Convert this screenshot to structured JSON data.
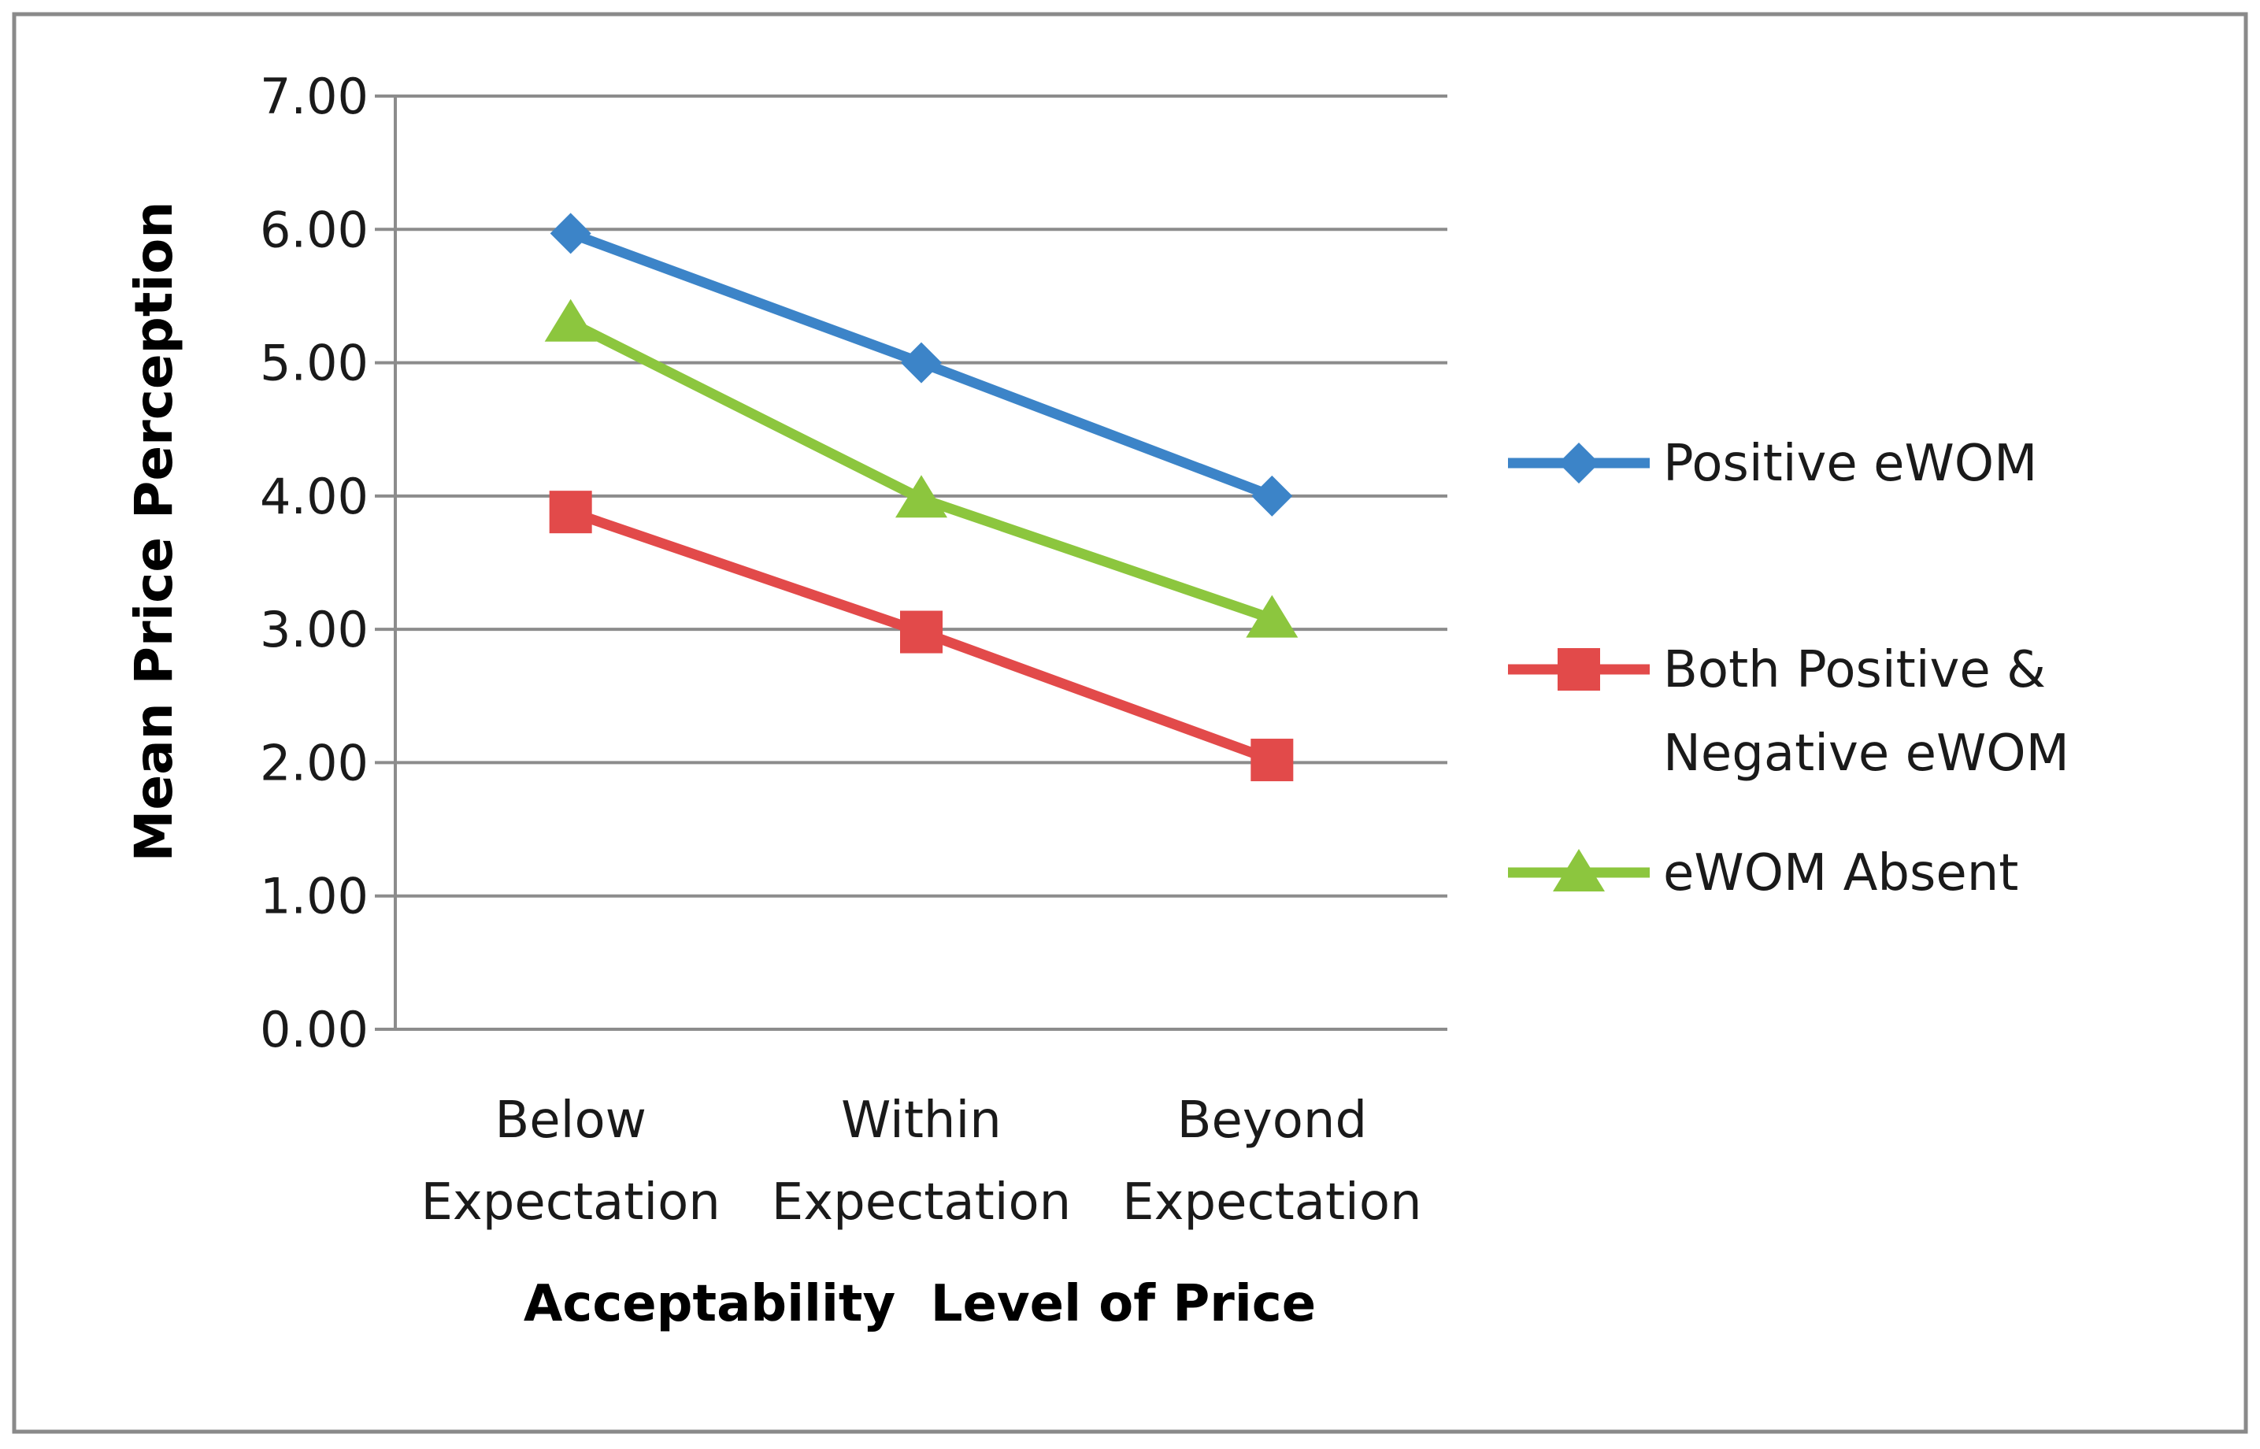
{
  "chart_data": {
    "type": "line",
    "categories": [
      [
        "Below",
        "Expectation"
      ],
      [
        "Within",
        "Expectation"
      ],
      [
        "Beyond",
        "Expectation"
      ]
    ],
    "xlabel": "Acceptability  Level of Price",
    "ylabel": "Mean Price Perception",
    "ylim": [
      0,
      7
    ],
    "yticks": [
      "0.00",
      "1.00",
      "2.00",
      "3.00",
      "4.00",
      "5.00",
      "6.00",
      "7.00"
    ],
    "grid": "horizontal",
    "legend_position": "right",
    "series": [
      {
        "name": "Positive eWOM",
        "name_lines": [
          "Positive eWOM"
        ],
        "values": [
          5.97,
          5.0,
          4.0
        ],
        "color": "#3C84C8",
        "marker": "diamond"
      },
      {
        "name": "Both Positive & Negative eWOM",
        "name_lines": [
          "Both Positive &",
          "Negative eWOM"
        ],
        "values": [
          3.88,
          2.98,
          2.02
        ],
        "color": "#E24A4A",
        "marker": "square"
      },
      {
        "name": "eWOM Absent",
        "name_lines": [
          "eWOM Absent"
        ],
        "values": [
          5.3,
          3.98,
          3.08
        ],
        "color": "#8CC63E",
        "marker": "triangle"
      }
    ]
  }
}
